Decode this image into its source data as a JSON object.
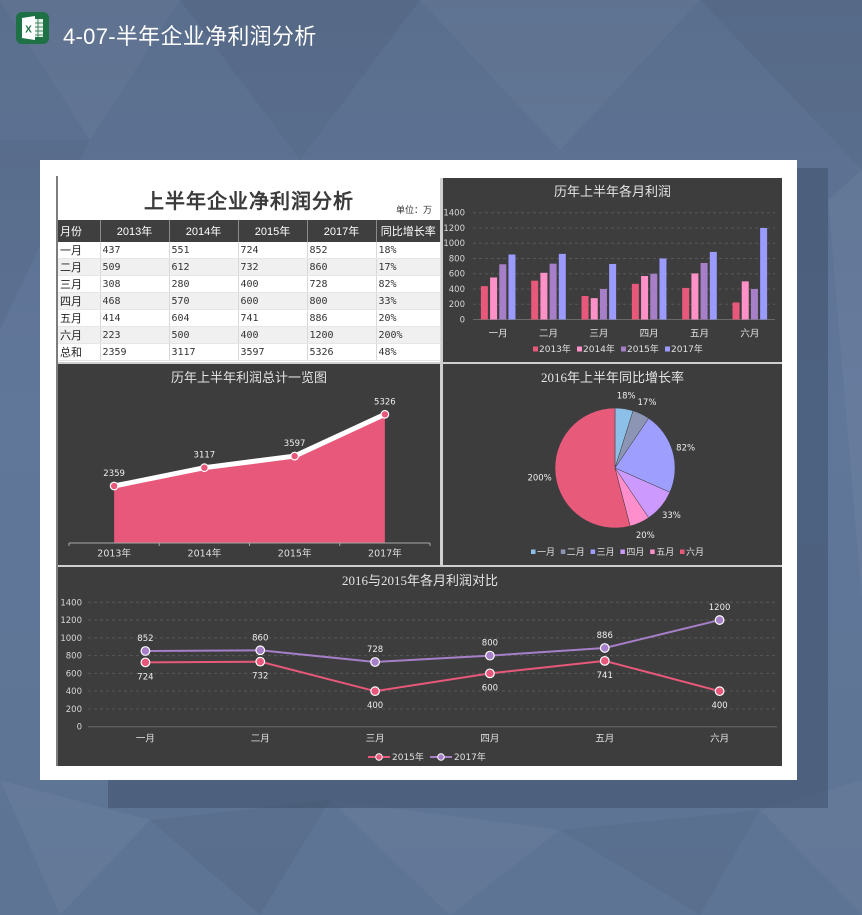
{
  "app": {
    "title": "4-07-半年企业净利润分析",
    "icon": "excel-icon"
  },
  "colors": {
    "background": "#5f7595",
    "panel": "#3d3d3d",
    "excel_green": "#1e7145",
    "series_2013": "#e8587a",
    "series_2014": "#ff90c8",
    "series_2015": "#a67fc8",
    "series_2017": "#9a9aff"
  },
  "sheet": {
    "title": "上半年企业净利润分析",
    "unit": "单位：万",
    "table": {
      "headers": [
        "月份",
        "2013年",
        "2014年",
        "2015年",
        "2017年",
        "同比增长率"
      ],
      "rows": [
        [
          "一月",
          "437",
          "551",
          "724",
          "852",
          "18%"
        ],
        [
          "二月",
          "509",
          "612",
          "732",
          "860",
          "17%"
        ],
        [
          "三月",
          "308",
          "280",
          "400",
          "728",
          "82%"
        ],
        [
          "四月",
          "468",
          "570",
          "600",
          "800",
          "33%"
        ],
        [
          "五月",
          "414",
          "604",
          "741",
          "886",
          "20%"
        ],
        [
          "六月",
          "223",
          "500",
          "400",
          "1200",
          "200%"
        ],
        [
          "总和",
          "2359",
          "3117",
          "3597",
          "5326",
          "48%"
        ]
      ]
    }
  },
  "chart_data": [
    {
      "type": "bar",
      "title": "历年上半年各月利润",
      "categories": [
        "一月",
        "二月",
        "三月",
        "四月",
        "五月",
        "六月"
      ],
      "series": [
        {
          "name": "2013年",
          "values": [
            437,
            509,
            308,
            468,
            414,
            223
          ],
          "color": "#e8587a"
        },
        {
          "name": "2014年",
          "values": [
            551,
            612,
            280,
            570,
            604,
            500
          ],
          "color": "#ff90c8"
        },
        {
          "name": "2015年",
          "values": [
            724,
            732,
            400,
            600,
            741,
            400
          ],
          "color": "#a67fc8"
        },
        {
          "name": "2017年",
          "values": [
            852,
            860,
            728,
            800,
            886,
            1200
          ],
          "color": "#9a9aff"
        }
      ],
      "xlabel": "",
      "ylabel": "",
      "ylim": [
        0,
        1400
      ],
      "yticks": [
        0,
        200,
        400,
        600,
        800,
        1000,
        1200,
        1400
      ],
      "grid": true,
      "legend_position": "bottom"
    },
    {
      "type": "area",
      "title": "历年上半年利润总计一览图",
      "categories": [
        "2013年",
        "2014年",
        "2015年",
        "2017年"
      ],
      "values": [
        2359,
        3117,
        3597,
        5326
      ],
      "color": "#e8587a",
      "line_color": "#ffffff",
      "data_labels": true,
      "grid": false
    },
    {
      "type": "pie",
      "title": "2016年上半年同比增长率",
      "categories": [
        "一月",
        "二月",
        "三月",
        "四月",
        "五月",
        "六月"
      ],
      "values": [
        18,
        17,
        82,
        33,
        20,
        200
      ],
      "labels": [
        "18%",
        "17%",
        "82%",
        "33%",
        "20%",
        "200%"
      ],
      "colors": [
        "#8cc0e8",
        "#8c96b4",
        "#9e9eff",
        "#cc99ff",
        "#ff8ecc",
        "#e85a7a"
      ],
      "legend_position": "bottom"
    },
    {
      "type": "line",
      "title": "2016与2015年各月利润对比",
      "categories": [
        "一月",
        "二月",
        "三月",
        "四月",
        "五月",
        "六月"
      ],
      "series": [
        {
          "name": "2015年",
          "values": [
            724,
            732,
            400,
            600,
            741,
            400
          ],
          "color": "#e8587a",
          "label_position": "below"
        },
        {
          "name": "2017年",
          "values": [
            852,
            860,
            728,
            800,
            886,
            1200
          ],
          "color": "#a67fc8",
          "label_position": "above"
        }
      ],
      "ylim": [
        0,
        1400
      ],
      "yticks": [
        0,
        200,
        400,
        600,
        800,
        1000,
        1200,
        1400
      ],
      "grid": true,
      "legend_position": "bottom"
    }
  ]
}
